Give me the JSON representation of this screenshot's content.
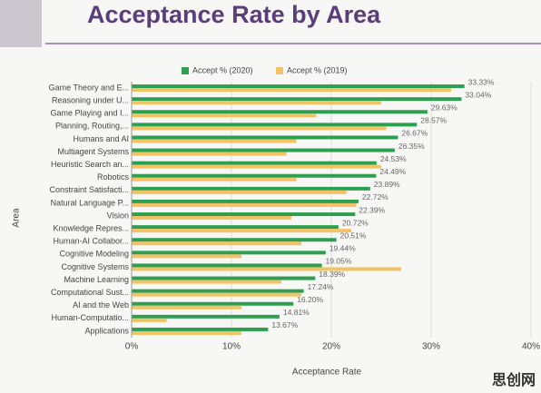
{
  "chart_data": {
    "type": "barh",
    "title": "Acceptance Rate by Area",
    "x_label": "Acceptance Rate",
    "y_label": "Area",
    "categories": [
      "Game Theory and E...",
      "Reasoning under U...",
      "Game Playing and I...",
      "Planning, Routing,...",
      "Humans and AI",
      "Multiagent Systems",
      "Heuristic Search an...",
      "Robotics",
      "Constraint Satisfacti...",
      "Natural Language P...",
      "Vision",
      "Knowledge Repres...",
      "Human-AI Collabor...",
      "Cognitive Modeling",
      "Cognitive Systems",
      "Machine Learning",
      "Computational Sust...",
      "AI and the Web",
      "Human-Computatio...",
      "Applications"
    ],
    "series": [
      {
        "name": "Accept % (2020)",
        "color": "#2e9e50",
        "values": [
          33.33,
          33.04,
          29.63,
          28.57,
          26.67,
          26.35,
          24.53,
          24.49,
          23.89,
          22.72,
          22.39,
          20.72,
          20.51,
          19.44,
          19.05,
          18.39,
          17.24,
          16.2,
          14.81,
          13.67
        ],
        "value_labels": [
          "33.33%",
          "33.04%",
          "29.63%",
          "28.57%",
          "26.67%",
          "26.35%",
          "24.53%",
          "24.49%",
          "23.89%",
          "22.72%",
          "22.39%",
          "20.72%",
          "20.51%",
          "19.44%",
          "19.05%",
          "18.39%",
          "17.24%",
          "16.20%",
          "14.81%",
          "13.67%"
        ]
      },
      {
        "name": "Accept % (2019)",
        "color": "#f2c265",
        "values": [
          32,
          25,
          18.5,
          25.5,
          16.5,
          15.5,
          25,
          16.5,
          21.5,
          22.5,
          16,
          22,
          17,
          11,
          27,
          15,
          17,
          11,
          3.5,
          11
        ]
      }
    ],
    "xlim": [
      0,
      40
    ],
    "xticks": [
      {
        "value": 0,
        "label": "0%"
      },
      {
        "value": 10,
        "label": "10%"
      },
      {
        "value": 20,
        "label": "20%"
      },
      {
        "value": 30,
        "label": "30%"
      },
      {
        "value": 40,
        "label": "40%"
      }
    ],
    "grid": true,
    "legend": "top",
    "watermark": "思创网"
  }
}
